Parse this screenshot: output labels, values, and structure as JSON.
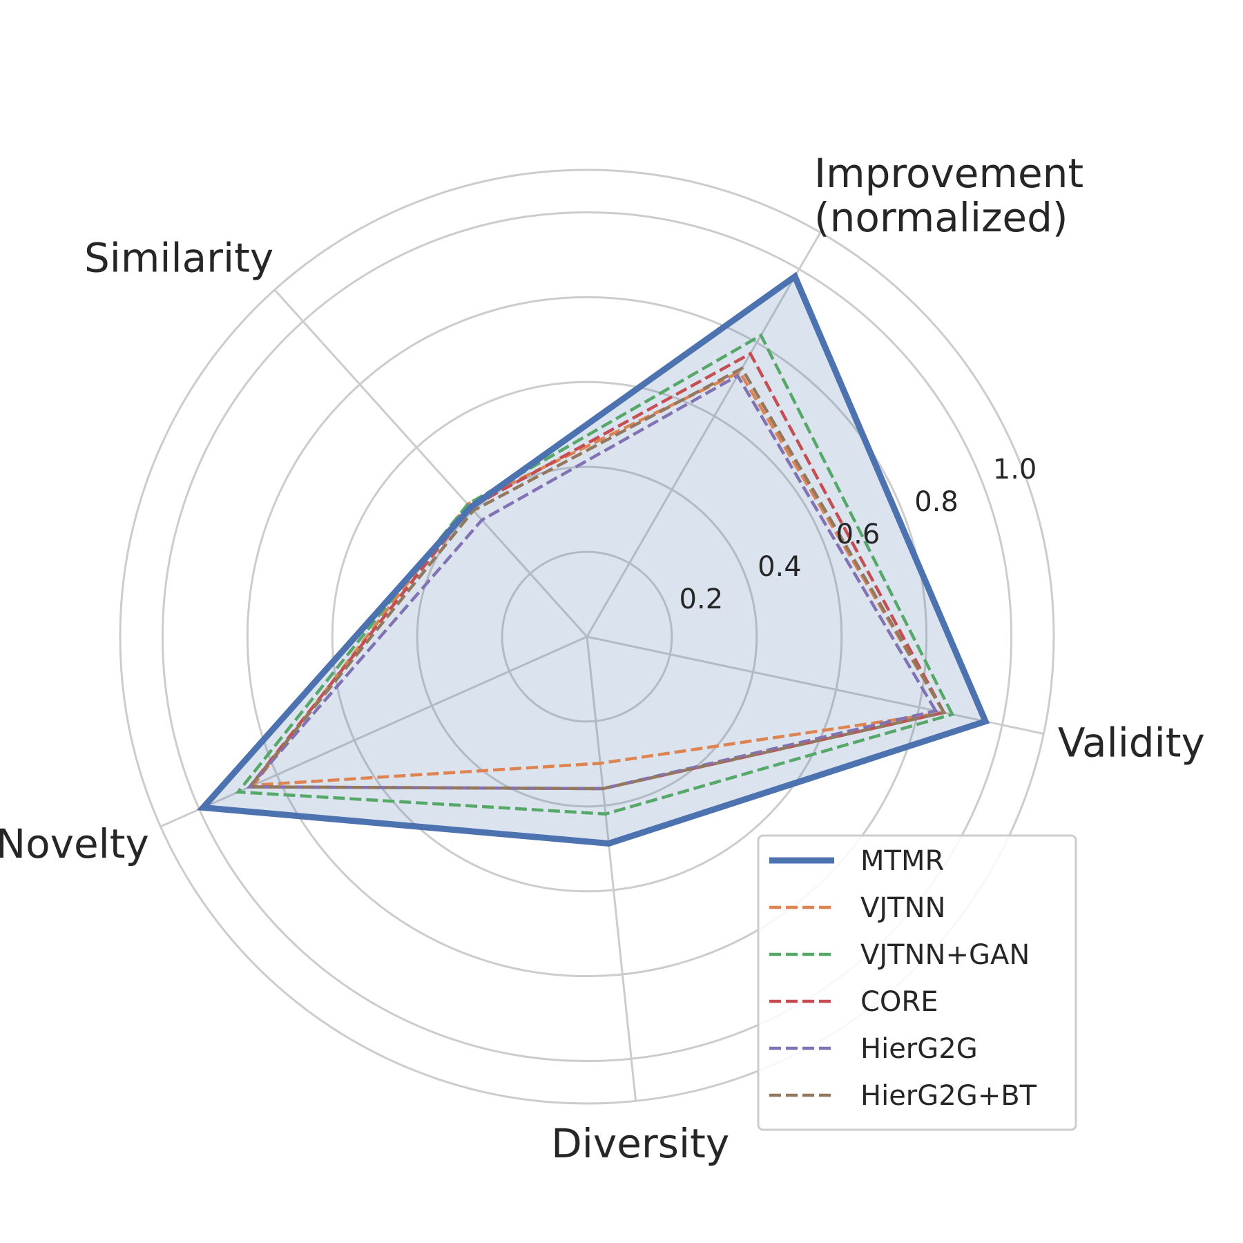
{
  "chart_data": {
    "type": "radar",
    "axes": [
      "Validity",
      "Improvement\n(normalized)",
      "Similarity",
      "Novelty",
      "Diversity"
    ],
    "rlim": [
      0,
      1.1
    ],
    "rticks": [
      0.2,
      0.4,
      0.6,
      0.8,
      1.0
    ],
    "rtick_labels": [
      "0.2",
      "0.4",
      "0.6",
      "0.8",
      "1.0"
    ],
    "grid": true,
    "legend_position": "lower-right",
    "series": [
      {
        "name": "MTMR",
        "values": [
          0.96,
          0.98,
          0.41,
          0.99,
          0.49
        ],
        "color": "#4c72b0",
        "style": "solid",
        "fill": true
      },
      {
        "name": "VJTNN",
        "values": [
          0.86,
          0.72,
          0.42,
          0.86,
          0.3
        ],
        "color": "#dd8452",
        "style": "dashed"
      },
      {
        "name": "VJTNN+GAN",
        "values": [
          0.88,
          0.82,
          0.42,
          0.9,
          0.42
        ],
        "color": "#55a868",
        "style": "dashed"
      },
      {
        "name": "CORE",
        "values": [
          0.86,
          0.77,
          0.41,
          0.87,
          0.36
        ],
        "color": "#c44e52",
        "style": "dashed"
      },
      {
        "name": "HierG2G",
        "values": [
          0.84,
          0.71,
          0.37,
          0.87,
          0.36
        ],
        "color": "#8172b3",
        "style": "dashed"
      },
      {
        "name": "HierG2G+BT",
        "values": [
          0.86,
          0.73,
          0.4,
          0.87,
          0.36
        ],
        "color": "#937860",
        "style": "dashed"
      }
    ]
  }
}
